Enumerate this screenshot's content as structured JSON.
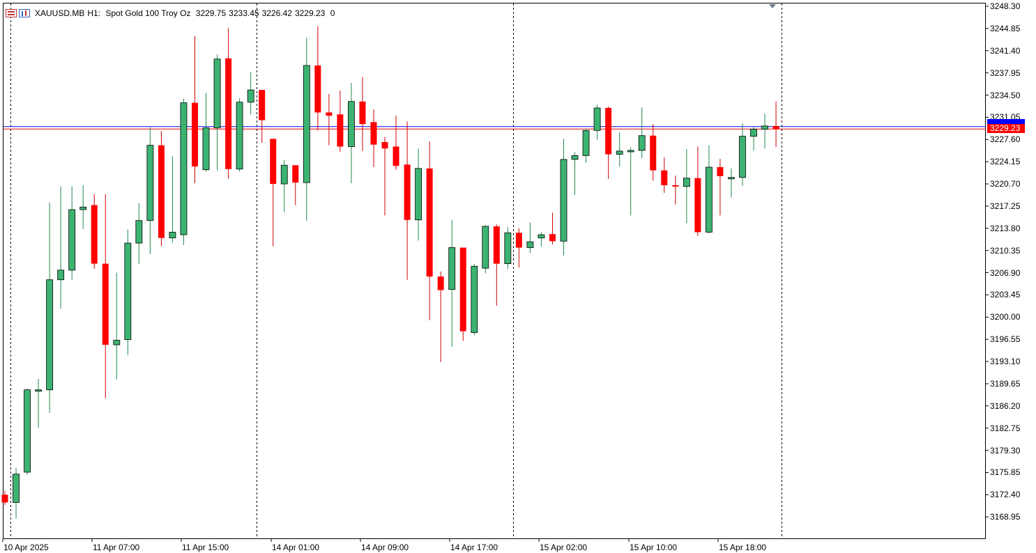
{
  "header": {
    "symbol": "XAUUSD.MB",
    "timeframe": "H1:",
    "description": "Spot Gold 100 Troy Oz",
    "open": "3229.75",
    "high": "3233.45",
    "low": "3226.42",
    "close": "3229.23",
    "volume": "0"
  },
  "price_axis": [
    "3248.30",
    "3244.85",
    "3241.40",
    "3237.95",
    "3234.50",
    "3231.05",
    "3227.60",
    "3224.15",
    "3220.70",
    "3217.25",
    "3213.80",
    "3210.35",
    "3206.90",
    "3203.45",
    "3200.00",
    "3196.55",
    "3193.10",
    "3189.65",
    "3186.20",
    "3182.75",
    "3179.30",
    "3175.85",
    "3172.40",
    "3168.95"
  ],
  "time_axis": [
    "10 Apr 2025",
    "11 Apr 07:00",
    "11 Apr 15:00",
    "14 Apr 01:00",
    "14 Apr 09:00",
    "14 Apr 17:00",
    "15 Apr 02:00",
    "15 Apr 10:00",
    "15 Apr 18:00"
  ],
  "markers": {
    "bid_line": "3229.23",
    "bid_color": "#ff0000",
    "ask_color": "#0000ff"
  },
  "colors": {
    "bull": "#3cb371",
    "bear": "#ff0000"
  },
  "chart_data": {
    "type": "candlestick",
    "symbol": "XAUUSD.MB",
    "timeframe": "H1",
    "ylim": [
      3166.7,
      3248.3
    ],
    "bid": 3229.23,
    "ask": 3229.6,
    "session_separators": [
      1,
      23,
      46,
      70
    ],
    "candles": [
      [
        3172.4,
        3173.0,
        3170.8,
        3171.2
      ],
      [
        3171.2,
        3176.6,
        3168.7,
        3175.6
      ],
      [
        3175.9,
        3188.9,
        3175.5,
        3188.7
      ],
      [
        3188.6,
        3190.4,
        3182.8,
        3188.7
      ],
      [
        3188.7,
        3217.8,
        3185.1,
        3205.8
      ],
      [
        3205.8,
        3220.3,
        3201.3,
        3207.3
      ],
      [
        3207.3,
        3220.3,
        3205.8,
        3216.7
      ],
      [
        3216.7,
        3220.5,
        3213.7,
        3217.1
      ],
      [
        3217.4,
        3219.1,
        3207.5,
        3208.3
      ],
      [
        3208.3,
        3219.1,
        3187.4,
        3195.7
      ],
      [
        3195.7,
        3206.9,
        3190.3,
        3196.4
      ],
      [
        3196.5,
        3213.6,
        3194.1,
        3211.5
      ],
      [
        3211.5,
        3217.7,
        3208.3,
        3215.0
      ],
      [
        3215.0,
        3229.5,
        3209.8,
        3226.7
      ],
      [
        3226.7,
        3228.9,
        3211.0,
        3212.3
      ],
      [
        3212.3,
        3225.0,
        3211.6,
        3213.2
      ],
      [
        3212.8,
        3233.9,
        3211.2,
        3233.3
      ],
      [
        3233.3,
        3243.7,
        3220.8,
        3223.4
      ],
      [
        3222.9,
        3234.8,
        3222.6,
        3229.4
      ],
      [
        3229.4,
        3240.8,
        3222.8,
        3240.1
      ],
      [
        3240.2,
        3244.9,
        3221.5,
        3223.0
      ],
      [
        3223.0,
        3234.0,
        3222.6,
        3233.4
      ],
      [
        3233.4,
        3238.1,
        3231.5,
        3235.3
      ],
      [
        3235.3,
        3235.3,
        3227.1,
        3230.6
      ],
      [
        3227.7,
        3227.7,
        3211.0,
        3220.7
      ],
      [
        3220.7,
        3224.4,
        3216.3,
        3223.6
      ],
      [
        3223.6,
        3223.6,
        3217.4,
        3220.9
      ],
      [
        3220.9,
        3243.4,
        3215.0,
        3239.1
      ],
      [
        3239.1,
        3245.2,
        3229.0,
        3231.8
      ],
      [
        3231.8,
        3234.7,
        3226.7,
        3231.3
      ],
      [
        3231.5,
        3235.2,
        3225.7,
        3226.5
      ],
      [
        3226.5,
        3236.4,
        3220.8,
        3233.5
      ],
      [
        3233.5,
        3237.3,
        3225.8,
        3230.0
      ],
      [
        3230.3,
        3232.3,
        3223.3,
        3226.8
      ],
      [
        3227.2,
        3228.0,
        3215.8,
        3226.2
      ],
      [
        3226.5,
        3231.3,
        3222.9,
        3223.5
      ],
      [
        3223.7,
        3230.4,
        3205.8,
        3215.1
      ],
      [
        3215.1,
        3226.2,
        3211.9,
        3223.1
      ],
      [
        3223.1,
        3227.3,
        3199.5,
        3206.3
      ],
      [
        3206.3,
        3207.1,
        3193.0,
        3204.2
      ],
      [
        3204.3,
        3215.1,
        3195.4,
        3210.8
      ],
      [
        3210.8,
        3210.8,
        3196.3,
        3197.8
      ],
      [
        3197.6,
        3208.3,
        3197.2,
        3207.9
      ],
      [
        3207.6,
        3214.3,
        3206.8,
        3214.1
      ],
      [
        3214.1,
        3214.4,
        3201.8,
        3208.3
      ],
      [
        3208.3,
        3214.0,
        3207.5,
        3213.1
      ],
      [
        3213.1,
        3213.8,
        3207.7,
        3210.8
      ],
      [
        3210.8,
        3214.7,
        3210.0,
        3211.7
      ],
      [
        3212.3,
        3213.2,
        3211.0,
        3212.8
      ],
      [
        3212.9,
        3216.2,
        3211.3,
        3211.8
      ],
      [
        3211.8,
        3227.7,
        3209.6,
        3224.5
      ],
      [
        3224.5,
        3225.6,
        3219.0,
        3225.1
      ],
      [
        3225.1,
        3229.3,
        3224.0,
        3229.0
      ],
      [
        3229.0,
        3233.0,
        3227.6,
        3232.5
      ],
      [
        3232.5,
        3232.7,
        3221.5,
        3225.3
      ],
      [
        3225.3,
        3228.7,
        3223.4,
        3225.8
      ],
      [
        3225.8,
        3226.4,
        3215.8,
        3225.9
      ],
      [
        3225.9,
        3232.6,
        3224.7,
        3228.2
      ],
      [
        3228.2,
        3230.0,
        3221.2,
        3222.8
      ],
      [
        3222.8,
        3224.8,
        3219.3,
        3220.5
      ],
      [
        3220.5,
        3222.0,
        3217.5,
        3220.3
      ],
      [
        3220.3,
        3226.1,
        3214.6,
        3221.6
      ],
      [
        3221.6,
        3226.5,
        3212.6,
        3213.2
      ],
      [
        3213.2,
        3226.7,
        3213.0,
        3223.3
      ],
      [
        3223.3,
        3224.6,
        3215.8,
        3221.9
      ],
      [
        3221.6,
        3223.1,
        3218.6,
        3221.7
      ],
      [
        3221.7,
        3230.1,
        3220.4,
        3228.1
      ],
      [
        3228.1,
        3229.6,
        3225.9,
        3229.2
      ],
      [
        3229.2,
        3231.6,
        3226.2,
        3229.7
      ],
      [
        3229.7,
        3233.5,
        3226.4,
        3229.23
      ]
    ]
  }
}
